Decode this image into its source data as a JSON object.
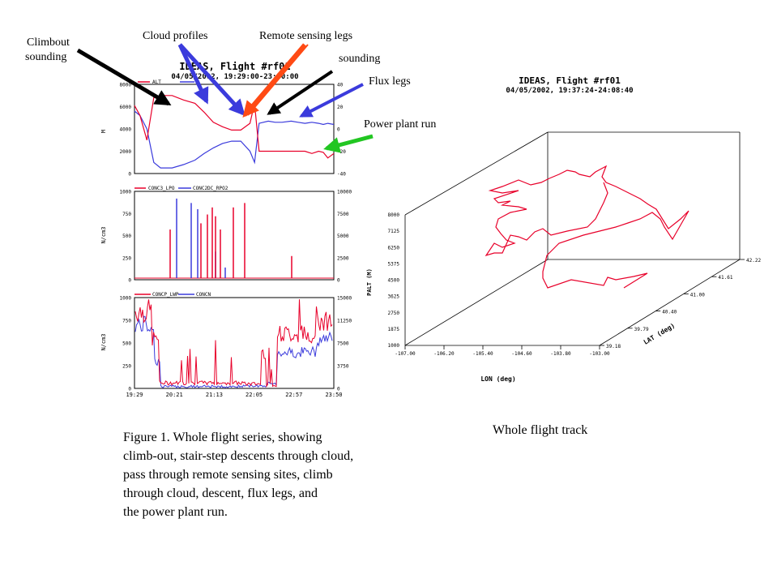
{
  "annotations": {
    "climbout_line1": "Climbout",
    "climbout_line2": "sounding",
    "cloud_profiles": "Cloud profiles",
    "remote_sensing": "Remote sensing legs",
    "sounding": "sounding",
    "flux_legs": "Flux legs",
    "power_plant": "Power plant run"
  },
  "captions": {
    "figure1_lines": [
      "Figure 1.  Whole flight series, showing",
      "climb-out, stair-step descents through cloud,",
      "pass through remote sensing sites, climb",
      "through cloud, descent, flux legs, and",
      "the power plant run."
    ],
    "track": "Whole flight track"
  },
  "colors": {
    "red": "#e8002a",
    "blue": "#3b3bdc",
    "green": "#22c622",
    "orange": "#ff4a14",
    "black": "#000000"
  },
  "chart_data": [
    {
      "type": "line",
      "title": "IDEAS, Flight #rf01",
      "subtitle": "04/05/2002, 19:29:00-23:50:00",
      "series": [
        {
          "name": "ALT",
          "axis": "left",
          "color": "#e8002a",
          "x": [
            19.48,
            19.6,
            19.75,
            19.9,
            20.05,
            20.3,
            20.55,
            20.8,
            21.0,
            21.2,
            21.4,
            21.6,
            21.8,
            22.0,
            22.1,
            22.2,
            22.4,
            22.55,
            22.7,
            22.9,
            23.05,
            23.2,
            23.35,
            23.5,
            23.6,
            23.7,
            23.83
          ],
          "values": [
            6100,
            5200,
            3000,
            6800,
            7000,
            7000,
            6600,
            6300,
            5500,
            4600,
            4200,
            3900,
            3900,
            4500,
            6300,
            2000,
            2000,
            2000,
            2000,
            2000,
            2000,
            2000,
            1800,
            2000,
            1900,
            1400,
            1800
          ]
        },
        {
          "name": "",
          "axis": "right",
          "color": "#3b3bdc",
          "x": [
            19.48,
            19.6,
            19.75,
            19.9,
            20.05,
            20.3,
            20.55,
            20.8,
            21.0,
            21.2,
            21.4,
            21.6,
            21.8,
            22.0,
            22.1,
            22.2,
            22.4,
            22.55,
            22.7,
            22.9,
            23.05,
            23.2,
            23.35,
            23.5,
            23.6,
            23.7,
            23.83
          ],
          "values": [
            16,
            12,
            0,
            -30,
            -35,
            -35,
            -32,
            -28,
            -22,
            -17,
            -13,
            -11,
            -11,
            -20,
            -30,
            5,
            7,
            6,
            6,
            7,
            6,
            5,
            6,
            5,
            4,
            5,
            4
          ]
        }
      ],
      "ylabel": "M",
      "ylim": [
        0,
        8000
      ],
      "y_ticks": [
        "8000",
        "6000",
        "4000",
        "2000",
        "0"
      ],
      "y2lim": [
        -40,
        40
      ],
      "y2_ticks": [
        "40",
        "20",
        "0",
        "-20",
        "-40"
      ]
    },
    {
      "type": "line",
      "series": [
        {
          "name": "CONC3_LPO",
          "axis": "left",
          "color": "#e8002a"
        },
        {
          "name": "CONC2DC_RPO2",
          "axis": "right",
          "color": "#3b3bdc"
        }
      ],
      "ylabel": "N/cm3",
      "ylim": [
        0,
        1000
      ],
      "y_ticks": [
        "1000",
        "750",
        "500",
        "250",
        "0"
      ],
      "y2lim": [
        0,
        10000
      ],
      "y2_ticks": [
        "10000",
        "7500",
        "5000",
        "2500",
        "0"
      ]
    },
    {
      "type": "line",
      "series": [
        {
          "name": "CONCP_LWP",
          "axis": "left",
          "color": "#e8002a"
        },
        {
          "name": "CONCN",
          "axis": "right",
          "color": "#3b3bdc"
        }
      ],
      "ylabel": "N/cm3",
      "ylim": [
        0,
        1000
      ],
      "y_ticks": [
        "1000",
        "750",
        "500",
        "250",
        "0"
      ],
      "y2lim": [
        0,
        15000
      ],
      "y2_ticks": [
        "15000",
        "11250",
        "7500",
        "3750",
        "0"
      ],
      "x_ticks": [
        "19:29",
        "20:21",
        "21:13",
        "22:05",
        "22:57",
        "23:50"
      ]
    },
    {
      "type": "line",
      "title": "IDEAS, Flight #rf01",
      "subtitle": "04/05/2002, 19:37:24-24:08:40",
      "xlabel": "LON (deg)",
      "ylabel": "PALT (M)",
      "zlabel": "LAT (deg)",
      "lon_ticks": [
        "-107.00",
        "-106.20",
        "-105.40",
        "-104.60",
        "-103.80",
        "-103.00"
      ],
      "alt_ticks": [
        "8000",
        "7125",
        "6250",
        "5375",
        "4500",
        "3625",
        "2750",
        "1875",
        "1000"
      ],
      "lat_ticks": [
        "42.22",
        "41.61",
        "41.00",
        "40.40",
        "39.79",
        "39.18"
      ]
    }
  ]
}
